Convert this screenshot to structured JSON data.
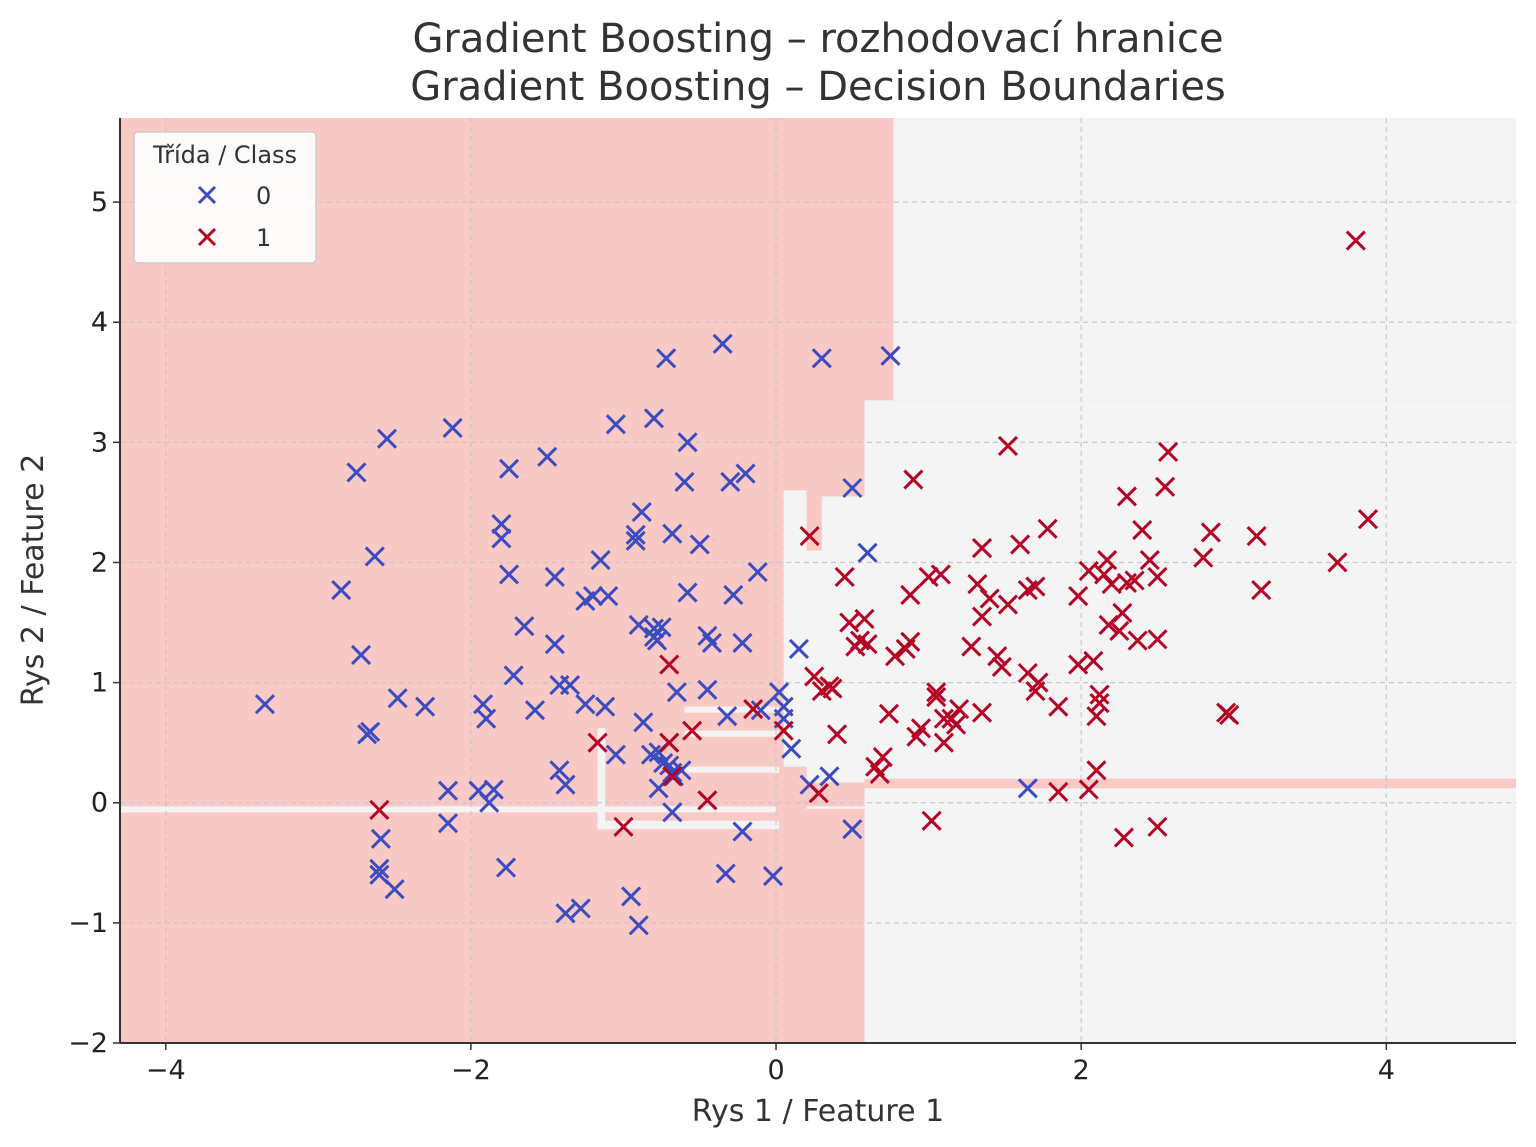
{
  "colors": {
    "class0": "#3b4cc0",
    "class1": "#b40426",
    "region_class0": "#f9c9c5",
    "region_class1": "#f4f4f4",
    "grid": "#c8c8c8",
    "axis": "#333333"
  },
  "chart_data": {
    "type": "scatter",
    "title_line1": "Gradient Boosting – rozhodovací hranice",
    "title_line2": "Gradient Boosting – Decision Boundaries",
    "xlabel": "Rys 1 / Feature 1",
    "ylabel": "Rys 2 / Feature 2",
    "xlim": [
      -4.3,
      4.85
    ],
    "ylim": [
      -2.0,
      5.7
    ],
    "xticks": [
      -4,
      -2,
      0,
      2,
      4
    ],
    "yticks": [
      -2,
      -1,
      0,
      1,
      2,
      3,
      4,
      5
    ],
    "xtick_labels": [
      "−4",
      "−2",
      "0",
      "2",
      "4"
    ],
    "ytick_labels": [
      "−2",
      "−1",
      "0",
      "1",
      "2",
      "3",
      "4",
      "5"
    ],
    "grid": true,
    "marker": "x",
    "legend": {
      "title": "Třída / Class",
      "placement": "top-left",
      "entries": [
        {
          "label": "0",
          "class": "0"
        },
        {
          "label": "1",
          "class": "1"
        }
      ]
    },
    "decision_regions": [
      {
        "class": "1",
        "x0": 0.77,
        "x1": 4.85,
        "y0": 3.35,
        "y1": 5.7
      },
      {
        "class": "1",
        "x0": 0.58,
        "x1": 4.85,
        "y0": -2.0,
        "y1": 3.35
      },
      {
        "class": "1",
        "x0": 0.3,
        "x1": 0.58,
        "y0": -0.05,
        "y1": 2.55
      },
      {
        "class": "1",
        "x0": 0.2,
        "x1": 0.3,
        "y0": -0.05,
        "y1": 2.1
      },
      {
        "class": "1",
        "x0": 0.05,
        "x1": 0.2,
        "y0": 0.3,
        "y1": 2.6
      },
      {
        "class": "1",
        "x0": -4.3,
        "x1": 0.0,
        "y0": -0.08,
        "y1": -0.03
      },
      {
        "class": "1",
        "x0": -1.17,
        "x1": 0.02,
        "y0": -0.22,
        "y1": -0.15
      },
      {
        "class": "1",
        "x0": -1.17,
        "x1": -1.12,
        "y0": -0.22,
        "y1": 0.62
      },
      {
        "class": "1",
        "x0": -0.6,
        "x1": 0.02,
        "y0": 0.25,
        "y1": 0.3
      },
      {
        "class": "1",
        "x0": -0.6,
        "x1": 0.02,
        "y0": 0.55,
        "y1": 0.6
      },
      {
        "class": "1",
        "x0": -0.6,
        "x1": 0.02,
        "y0": 0.75,
        "y1": 0.8
      },
      {
        "class": "0",
        "x0": 0.58,
        "x1": 4.85,
        "y0": 0.12,
        "y1": 0.2
      },
      {
        "class": "0",
        "x0": 0.2,
        "x1": 0.58,
        "y0": -0.03,
        "y1": 0.17
      }
    ],
    "series": [
      {
        "name": "0",
        "points": [
          [
            -3.35,
            0.82
          ],
          [
            -2.85,
            1.77
          ],
          [
            -2.75,
            2.75
          ],
          [
            -2.72,
            1.23
          ],
          [
            -2.68,
            0.57
          ],
          [
            -2.66,
            0.59
          ],
          [
            -2.63,
            2.05
          ],
          [
            -2.59,
            -0.3
          ],
          [
            -2.6,
            -0.55
          ],
          [
            -2.6,
            -0.6
          ],
          [
            -2.55,
            3.03
          ],
          [
            -2.5,
            -0.72
          ],
          [
            -2.48,
            0.87
          ],
          [
            -2.3,
            0.8
          ],
          [
            -2.15,
            0.1
          ],
          [
            -2.15,
            -0.17
          ],
          [
            -2.12,
            3.12
          ],
          [
            -1.95,
            0.1
          ],
          [
            -1.92,
            0.82
          ],
          [
            -1.9,
            0.7
          ],
          [
            -1.88,
            0.0
          ],
          [
            -1.85,
            0.11
          ],
          [
            -1.8,
            2.32
          ],
          [
            -1.8,
            2.2
          ],
          [
            -1.75,
            2.78
          ],
          [
            -1.75,
            1.9
          ],
          [
            -1.77,
            -0.54
          ],
          [
            -1.72,
            1.06
          ],
          [
            -1.65,
            1.47
          ],
          [
            -1.58,
            0.77
          ],
          [
            -1.5,
            2.88
          ],
          [
            -1.45,
            1.88
          ],
          [
            -1.45,
            1.32
          ],
          [
            -1.42,
            0.98
          ],
          [
            -1.42,
            0.27
          ],
          [
            -1.38,
            0.15
          ],
          [
            -1.38,
            -0.92
          ],
          [
            -1.35,
            0.98
          ],
          [
            -1.25,
            1.68
          ],
          [
            -1.25,
            0.82
          ],
          [
            -1.28,
            -0.88
          ],
          [
            -1.2,
            1.72
          ],
          [
            -1.15,
            2.02
          ],
          [
            -1.12,
            0.8
          ],
          [
            -1.1,
            1.72
          ],
          [
            -1.05,
            0.4
          ],
          [
            -1.05,
            3.15
          ],
          [
            -0.95,
            -0.78
          ],
          [
            -0.92,
            2.18
          ],
          [
            -0.92,
            2.23
          ],
          [
            -0.9,
            1.48
          ],
          [
            -0.9,
            -1.02
          ],
          [
            -0.88,
            2.42
          ],
          [
            -0.87,
            0.67
          ],
          [
            -0.82,
            0.4
          ],
          [
            -0.8,
            1.45
          ],
          [
            -0.8,
            1.38
          ],
          [
            -0.8,
            3.2
          ],
          [
            -0.78,
            1.35
          ],
          [
            -0.77,
            0.12
          ],
          [
            -0.77,
            0.42
          ],
          [
            -0.75,
            1.46
          ],
          [
            -0.74,
            0.33
          ],
          [
            -0.72,
            3.7
          ],
          [
            -0.7,
            0.31
          ],
          [
            -0.68,
            0.25
          ],
          [
            -0.68,
            2.24
          ],
          [
            -0.67,
            0.22
          ],
          [
            -0.65,
            0.92
          ],
          [
            -0.62,
            0.27
          ],
          [
            -0.6,
            2.67
          ],
          [
            -0.58,
            3.0
          ],
          [
            -0.58,
            1.75
          ],
          [
            -0.5,
            2.15
          ],
          [
            -0.45,
            0.94
          ],
          [
            -0.45,
            1.39
          ],
          [
            -0.42,
            1.33
          ],
          [
            -0.35,
            3.82
          ],
          [
            -0.32,
            0.72
          ],
          [
            -0.33,
            -0.59
          ],
          [
            -0.3,
            2.67
          ],
          [
            -0.28,
            1.73
          ],
          [
            -0.22,
            1.33
          ],
          [
            -0.22,
            -0.24
          ],
          [
            -0.2,
            2.74
          ],
          [
            -0.12,
            1.92
          ],
          [
            -0.1,
            0.77
          ],
          [
            -0.02,
            -0.61
          ],
          [
            0.02,
            0.92
          ],
          [
            0.05,
            0.7
          ],
          [
            0.05,
            0.8
          ],
          [
            0.1,
            0.45
          ],
          [
            0.15,
            1.28
          ],
          [
            0.22,
            0.15
          ],
          [
            0.3,
            3.7
          ],
          [
            0.35,
            0.22
          ],
          [
            0.5,
            2.62
          ],
          [
            0.5,
            -0.22
          ],
          [
            0.6,
            2.08
          ],
          [
            0.75,
            3.72
          ],
          [
            1.65,
            0.12
          ],
          [
            -0.68,
            -0.08
          ]
        ]
      },
      {
        "name": "1",
        "points": [
          [
            -2.6,
            -0.06
          ],
          [
            -1.17,
            0.5
          ],
          [
            -1.0,
            -0.2
          ],
          [
            -0.7,
            1.15
          ],
          [
            -0.7,
            0.5
          ],
          [
            -0.68,
            0.22
          ],
          [
            -0.55,
            0.6
          ],
          [
            -0.45,
            0.02
          ],
          [
            -0.15,
            0.78
          ],
          [
            0.05,
            0.6
          ],
          [
            0.22,
            2.22
          ],
          [
            0.25,
            1.05
          ],
          [
            0.28,
            0.08
          ],
          [
            0.3,
            0.93
          ],
          [
            0.35,
            0.97
          ],
          [
            0.37,
            0.95
          ],
          [
            0.4,
            0.57
          ],
          [
            0.45,
            1.88
          ],
          [
            0.48,
            1.5
          ],
          [
            0.52,
            1.3
          ],
          [
            0.55,
            1.35
          ],
          [
            0.6,
            1.32
          ],
          [
            0.58,
            1.53
          ],
          [
            0.65,
            0.3
          ],
          [
            0.68,
            0.24
          ],
          [
            0.7,
            0.38
          ],
          [
            0.74,
            0.74
          ],
          [
            0.78,
            1.22
          ],
          [
            0.85,
            1.28
          ],
          [
            0.88,
            1.73
          ],
          [
            0.88,
            1.34
          ],
          [
            0.9,
            2.69
          ],
          [
            0.92,
            0.55
          ],
          [
            0.95,
            0.62
          ],
          [
            1.0,
            1.88
          ],
          [
            1.02,
            -0.15
          ],
          [
            1.05,
            0.92
          ],
          [
            1.05,
            0.88
          ],
          [
            1.08,
            1.9
          ],
          [
            1.1,
            0.7
          ],
          [
            1.1,
            0.5
          ],
          [
            1.15,
            0.7
          ],
          [
            1.18,
            0.65
          ],
          [
            1.2,
            0.78
          ],
          [
            1.28,
            1.3
          ],
          [
            1.32,
            1.82
          ],
          [
            1.35,
            2.12
          ],
          [
            1.35,
            1.55
          ],
          [
            1.35,
            0.75
          ],
          [
            1.4,
            1.7
          ],
          [
            1.45,
            1.22
          ],
          [
            1.48,
            1.13
          ],
          [
            1.52,
            1.65
          ],
          [
            1.52,
            2.97
          ],
          [
            1.6,
            2.15
          ],
          [
            1.65,
            1.77
          ],
          [
            1.65,
            1.08
          ],
          [
            1.7,
            1.8
          ],
          [
            1.7,
            0.93
          ],
          [
            1.72,
            1.0
          ],
          [
            1.78,
            2.28
          ],
          [
            1.85,
            0.8
          ],
          [
            1.85,
            0.09
          ],
          [
            1.98,
            1.15
          ],
          [
            1.98,
            1.72
          ],
          [
            2.05,
            0.11
          ],
          [
            2.05,
            1.93
          ],
          [
            2.08,
            1.18
          ],
          [
            2.1,
            0.72
          ],
          [
            2.1,
            0.27
          ],
          [
            2.12,
            0.9
          ],
          [
            2.12,
            0.83
          ],
          [
            2.15,
            1.9
          ],
          [
            2.17,
            2.02
          ],
          [
            2.18,
            1.48
          ],
          [
            2.2,
            1.82
          ],
          [
            2.25,
            1.43
          ],
          [
            2.27,
            1.58
          ],
          [
            2.28,
            -0.29
          ],
          [
            2.3,
            2.55
          ],
          [
            2.3,
            1.83
          ],
          [
            2.35,
            1.85
          ],
          [
            2.37,
            1.35
          ],
          [
            2.4,
            2.27
          ],
          [
            2.45,
            2.02
          ],
          [
            2.5,
            1.88
          ],
          [
            2.5,
            1.36
          ],
          [
            2.5,
            -0.2
          ],
          [
            2.55,
            2.63
          ],
          [
            2.57,
            2.92
          ],
          [
            2.8,
            2.04
          ],
          [
            2.85,
            2.25
          ],
          [
            2.95,
            0.75
          ],
          [
            2.97,
            0.73
          ],
          [
            3.15,
            2.22
          ],
          [
            3.18,
            1.77
          ],
          [
            3.68,
            2.0
          ],
          [
            3.8,
            4.68
          ],
          [
            3.88,
            2.36
          ]
        ]
      }
    ]
  }
}
